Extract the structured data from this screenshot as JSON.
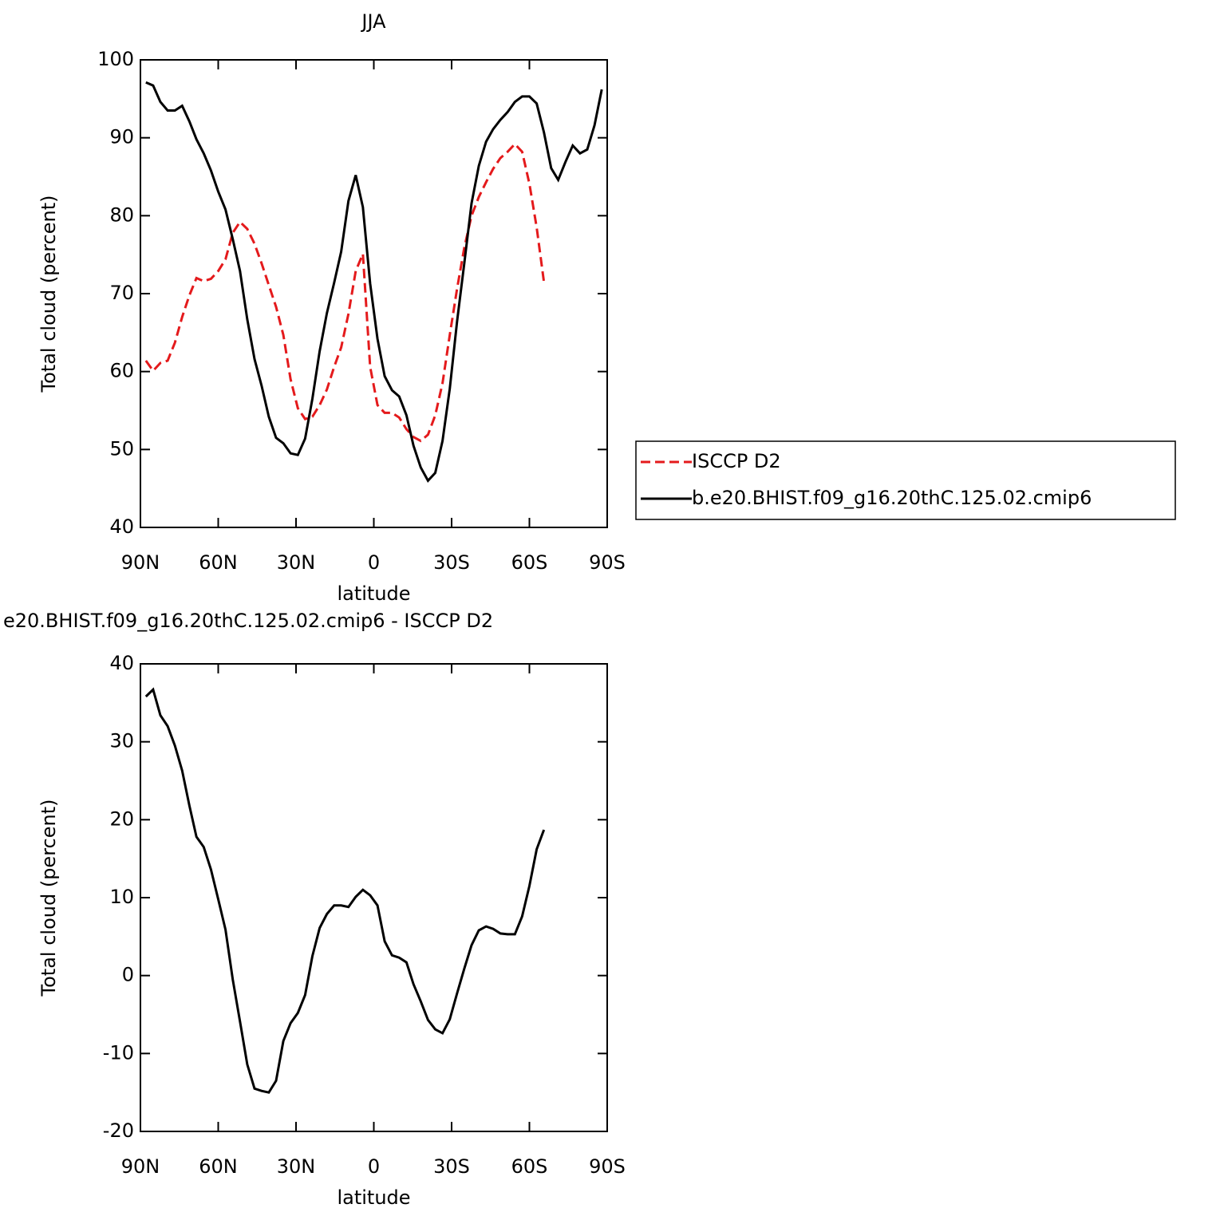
{
  "chart_data": [
    {
      "type": "line",
      "title": "JJA",
      "xlabel": "latitude",
      "ylabel": "Total cloud (percent)",
      "x": [
        87.9,
        85.1,
        82.3,
        79.5,
        76.7,
        73.9,
        71.1,
        68.4,
        65.6,
        62.8,
        60.0,
        57.2,
        54.4,
        51.6,
        48.8,
        46.0,
        43.3,
        40.5,
        37.7,
        34.9,
        32.1,
        29.3,
        26.5,
        23.7,
        20.9,
        18.1,
        15.3,
        12.6,
        9.8,
        7.0,
        4.2,
        1.4,
        -1.4,
        -4.2,
        -7.0,
        -9.8,
        -12.6,
        -15.3,
        -18.1,
        -20.9,
        -23.7,
        -26.5,
        -29.3,
        -32.1,
        -34.9,
        -37.7,
        -40.5,
        -43.3,
        -46.0,
        -48.8,
        -51.6,
        -54.4,
        -57.2,
        -60.0,
        -62.8,
        -65.6,
        -68.4,
        -71.1,
        -73.9,
        -76.7,
        -79.5,
        -82.3,
        -85.1,
        -87.9
      ],
      "series": [
        {
          "name": "ISCCP D2",
          "color": "#e41a1c",
          "line_style": "dashed",
          "values": [
            61.4,
            60.1,
            61.1,
            61.4,
            63.7,
            67.0,
            69.8,
            72.0,
            71.6,
            71.9,
            72.9,
            74.4,
            77.8,
            79.2,
            78.3,
            76.4,
            73.9,
            71.1,
            68.3,
            64.7,
            59.0,
            55.3,
            53.9,
            54.2,
            55.7,
            57.7,
            60.6,
            63.1,
            67.4,
            72.9,
            75.1,
            60.6,
            55.7,
            54.7,
            54.7,
            54.1,
            52.6,
            51.6,
            51.1,
            51.9,
            54.4,
            58.5,
            64.7,
            70.6,
            75.9,
            80.0,
            82.4,
            84.3,
            86.0,
            87.4,
            88.2,
            89.2,
            88.2,
            84.1,
            78.5,
            71.5,
            null,
            null,
            null,
            null,
            null,
            null,
            null,
            null
          ]
        },
        {
          "name": "b.e20.BHIST.f09_g16.20thC.125.02.cmip6",
          "color": "#000000",
          "line_style": "solid",
          "values": [
            97.1,
            96.7,
            94.6,
            93.5,
            93.5,
            94.1,
            92.1,
            89.8,
            88.0,
            85.8,
            83.1,
            80.8,
            77.0,
            72.9,
            66.7,
            61.6,
            58.2,
            54.2,
            51.5,
            50.8,
            49.5,
            49.3,
            51.4,
            56.5,
            62.6,
            67.5,
            71.4,
            75.4,
            81.9,
            85.2,
            81.1,
            71.3,
            64.2,
            59.4,
            57.6,
            56.8,
            54.4,
            50.5,
            47.7,
            46.0,
            47.0,
            51.1,
            57.8,
            66.4,
            73.9,
            81.6,
            86.4,
            89.5,
            91.1,
            92.3,
            93.3,
            94.6,
            95.3,
            95.3,
            94.4,
            90.7,
            86.1,
            84.6,
            86.9,
            89.0,
            88.0,
            88.5,
            91.6,
            96.2
          ]
        }
      ],
      "xlim": [
        90,
        -90
      ],
      "xticks": [
        {
          "value": 90,
          "label": "90N"
        },
        {
          "value": 60,
          "label": "60N"
        },
        {
          "value": 30,
          "label": "30N"
        },
        0,
        {
          "value": -30,
          "label": "30S"
        },
        {
          "value": -60,
          "label": "60S"
        },
        {
          "value": -90,
          "label": "90S"
        }
      ],
      "ylim": [
        40,
        100
      ],
      "yticks": [
        40,
        50,
        60,
        70,
        80,
        90,
        100
      ],
      "legend": "right"
    },
    {
      "type": "line",
      "title": "e20.BHIST.f09_g16.20thC.125.02.cmip6 - ISCCP D2",
      "xlabel": "latitude",
      "ylabel": "Total cloud (percent)",
      "x": [
        87.9,
        85.1,
        82.3,
        79.5,
        76.7,
        73.9,
        71.1,
        68.4,
        65.6,
        62.8,
        60.0,
        57.2,
        54.4,
        51.6,
        48.8,
        46.0,
        43.3,
        40.5,
        37.7,
        34.9,
        32.1,
        29.3,
        26.5,
        23.7,
        20.9,
        18.1,
        15.3,
        12.6,
        9.8,
        7.0,
        4.2,
        1.4,
        -1.4,
        -4.2,
        -7.0,
        -9.8,
        -12.6,
        -15.3,
        -18.1,
        -20.9,
        -23.7,
        -26.5,
        -29.3,
        -32.1,
        -34.9,
        -37.7,
        -40.5,
        -43.3,
        -46.0,
        -48.8,
        -51.6,
        -54.4,
        -57.2,
        -60.0,
        -62.8,
        -65.6
      ],
      "series": [
        {
          "color": "#000000",
          "line_style": "solid",
          "values": [
            35.8,
            36.7,
            33.4,
            32.0,
            29.5,
            26.3,
            21.8,
            17.8,
            16.5,
            13.6,
            9.8,
            5.9,
            -0.5,
            -5.9,
            -11.4,
            -14.5,
            -14.8,
            -15.0,
            -13.5,
            -8.4,
            -6.1,
            -4.8,
            -2.5,
            2.5,
            6.1,
            7.9,
            9.0,
            9.0,
            8.8,
            10.1,
            11.0,
            10.3,
            9.0,
            4.4,
            2.6,
            2.3,
            1.7,
            -1.1,
            -3.3,
            -5.7,
            -6.9,
            -7.4,
            -5.6,
            -2.3,
            0.9,
            3.9,
            5.8,
            6.3,
            6.0,
            5.4,
            5.3,
            5.3,
            7.6,
            11.5,
            16.2,
            18.7
          ]
        }
      ],
      "xlim": [
        90,
        -90
      ],
      "xticks": [
        {
          "value": 90,
          "label": "90N"
        },
        {
          "value": 60,
          "label": "60N"
        },
        {
          "value": 30,
          "label": "30N"
        },
        0,
        {
          "value": -30,
          "label": "30S"
        },
        {
          "value": -60,
          "label": "60S"
        },
        {
          "value": -90,
          "label": "90S"
        }
      ],
      "ylim": [
        -20,
        40
      ],
      "yticks": [
        -20,
        -10,
        0,
        10,
        20,
        30,
        40
      ]
    }
  ]
}
